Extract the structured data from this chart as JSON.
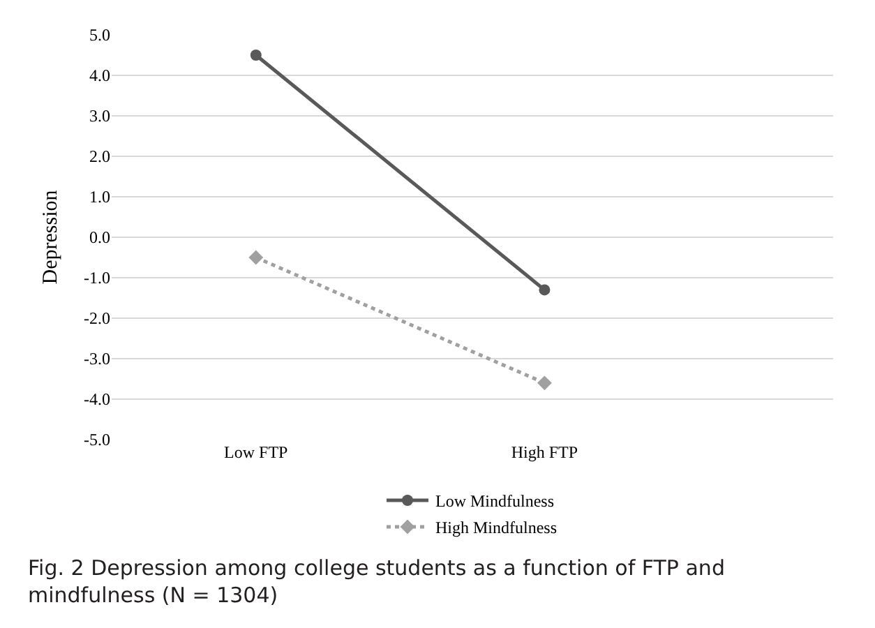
{
  "chart_data": {
    "type": "line",
    "ylabel": "Depression",
    "categories": [
      "Low FTP",
      "High FTP"
    ],
    "series": [
      {
        "name": "Low Mindfulness",
        "color": "#595959",
        "values": [
          4.5,
          -1.3
        ],
        "marker": "circle",
        "line_style": "solid"
      },
      {
        "name": "High Mindfulness",
        "color": "#a0a0a0",
        "values": [
          -0.5,
          -3.6
        ],
        "marker": "diamond",
        "line_style": "dotted"
      }
    ],
    "ylim": [
      -5.0,
      5.0
    ],
    "yticks": [
      {
        "value": 5,
        "label": "5.0"
      },
      {
        "value": 4,
        "label": "4.0"
      },
      {
        "value": 3,
        "label": "3.0"
      },
      {
        "value": 2,
        "label": "2.0"
      },
      {
        "value": 1,
        "label": "1.0"
      },
      {
        "value": 0,
        "label": "0.0"
      },
      {
        "value": -1,
        "label": "-1.0"
      },
      {
        "value": -2,
        "label": "-2.0"
      },
      {
        "value": -3,
        "label": "-3.0"
      },
      {
        "value": -4,
        "label": "-4.0"
      },
      {
        "value": -5,
        "label": "-5.0"
      }
    ],
    "grid": "y",
    "legend": "bottom",
    "annotations": [
      "Fig. 2 Depression among college students as a function of FTP and mindfulness (N = 1304)"
    ]
  }
}
